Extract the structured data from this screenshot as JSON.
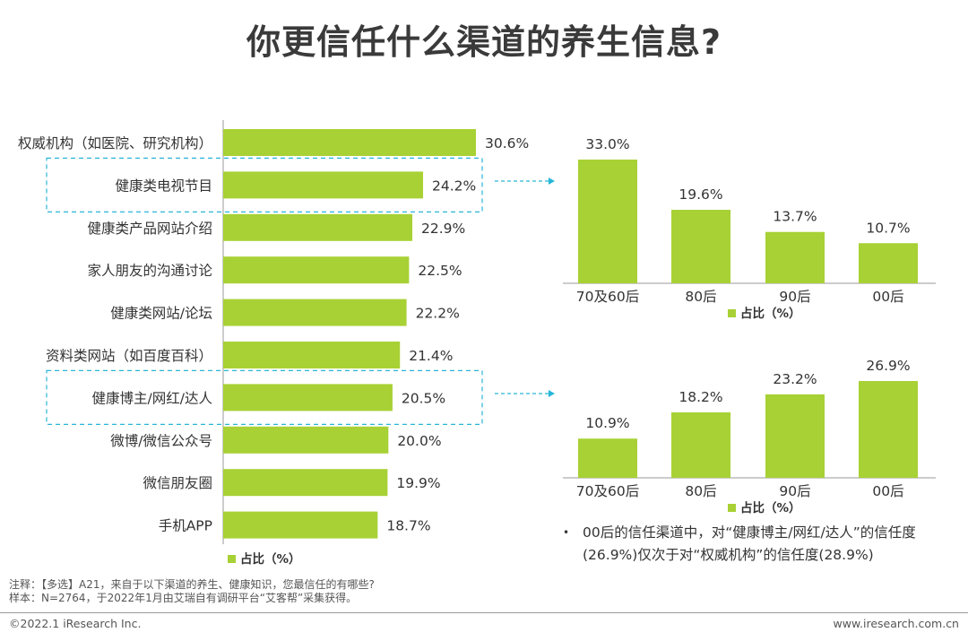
{
  "page": {
    "title": "你更信任什么渠道的养生信息?",
    "note": "00后的信任渠道中，对“健康博主/网红/达人”的信任度(26.9%)仅次于对“权威机构”的信任度(28.9%)",
    "footnote_line1": "注释：【多选】A21，来自于以下渠道的养生、健康知识，您最信任的有哪些?",
    "footnote_line2": "样本：N=2764，于2022年1月由艾瑞自有调研平台“艾客帮”采集获得。",
    "copyright": "©2022.1 iResearch Inc.",
    "website": "www.iresearch.com.cn",
    "bullet": "•"
  },
  "colors": {
    "bar": "#a8d135",
    "highlight": "#29b6d8",
    "axis": "#999999",
    "text": "#333333"
  },
  "chart_data": [
    {
      "type": "bar",
      "orientation": "horizontal",
      "title": "",
      "categories": [
        "权威机构（如医院、研究机构）",
        "健康类电视节目",
        "健康类产品网站介绍",
        "家人朋友的沟通讨论",
        "健康类网站/论坛",
        "资料类网站（如百度百科）",
        "健康博主/网红/达人",
        "微博/微信公众号",
        "微信朋友圈",
        "手机APP"
      ],
      "values": [
        30.6,
        24.2,
        22.9,
        22.5,
        22.2,
        21.4,
        20.5,
        20.0,
        19.9,
        18.7
      ],
      "value_labels": [
        "30.6%",
        "24.2%",
        "22.9%",
        "22.5%",
        "22.2%",
        "21.4%",
        "20.5%",
        "20.0%",
        "19.9%",
        "18.7%"
      ],
      "highlighted": [
        "健康类电视节目",
        "健康博主/网红/达人"
      ],
      "legend": "占比（%）",
      "xlim": [
        0,
        35
      ]
    },
    {
      "type": "bar",
      "title": "健康类电视节目",
      "categories": [
        "70及60后",
        "80后",
        "90后",
        "00后"
      ],
      "values": [
        33.0,
        19.6,
        13.7,
        10.7
      ],
      "value_labels": [
        "33.0%",
        "19.6%",
        "13.7%",
        "10.7%"
      ],
      "legend": "占比（%）",
      "ylim": [
        0,
        33
      ]
    },
    {
      "type": "bar",
      "title": "健康博主/网红/达人",
      "categories": [
        "70及60后",
        "80后",
        "90后",
        "00后"
      ],
      "values": [
        10.9,
        18.2,
        23.2,
        26.9
      ],
      "value_labels": [
        "10.9%",
        "18.2%",
        "23.2%",
        "26.9%"
      ],
      "legend": "占比（%）",
      "ylim": [
        0,
        26.9
      ]
    }
  ]
}
